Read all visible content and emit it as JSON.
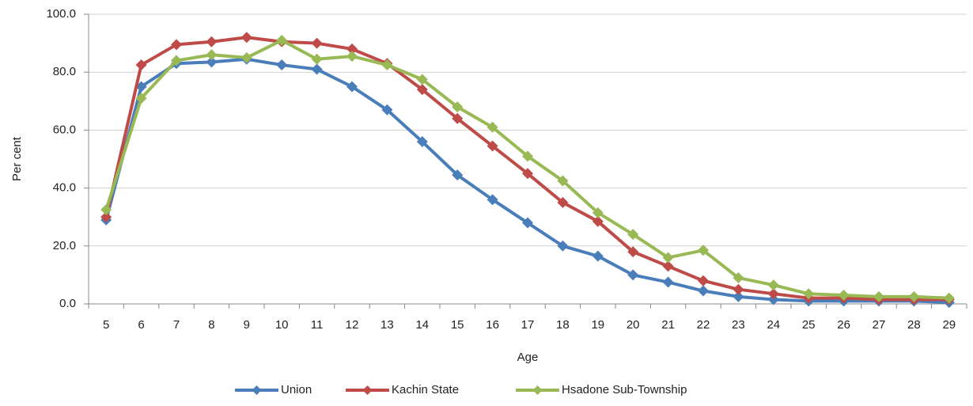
{
  "chart_data": {
    "type": "line",
    "x_label": "Age",
    "y_label": "Per cent",
    "categories": [
      "5",
      "6",
      "7",
      "8",
      "9",
      "10",
      "11",
      "12",
      "13",
      "14",
      "15",
      "16",
      "17",
      "18",
      "19",
      "20",
      "21",
      "22",
      "23",
      "24",
      "25",
      "26",
      "27",
      "28",
      "29"
    ],
    "series": [
      {
        "name": "Union",
        "color": "#4a7ebb",
        "values": [
          29,
          75,
          83,
          83.5,
          84.5,
          82.5,
          81,
          75,
          67,
          56,
          44.5,
          36,
          28,
          20,
          16.5,
          10,
          7.5,
          4.5,
          2.5,
          1.5,
          1,
          1,
          1,
          1,
          0.5
        ]
      },
      {
        "name": "Kachin State",
        "color": "#be4b48",
        "values": [
          30,
          82.5,
          89.5,
          90.5,
          92,
          90.5,
          90,
          88,
          83,
          74,
          64,
          54.5,
          45,
          35,
          28.5,
          18,
          13,
          8,
          5,
          3.5,
          2,
          2,
          1.5,
          1.5,
          1.5
        ]
      },
      {
        "name": "Hsadone Sub-Township",
        "color": "#98b954",
        "values": [
          32.5,
          71,
          84,
          86,
          85,
          91,
          84.5,
          85.5,
          82.5,
          77.5,
          68,
          61,
          51,
          42.5,
          31.5,
          24,
          16,
          18.5,
          9,
          6.5,
          3.5,
          3,
          2.5,
          2.5,
          2
        ]
      }
    ],
    "ylim": [
      0,
      100
    ],
    "yticks": [
      {
        "value": 0,
        "label": "0.0"
      },
      {
        "value": 20,
        "label": "20.0"
      },
      {
        "value": 40,
        "label": "40.0"
      },
      {
        "value": 60,
        "label": "60.0"
      },
      {
        "value": 80,
        "label": "80.0"
      },
      {
        "value": 100,
        "label": "100.0"
      }
    ],
    "grid": true,
    "legend": "bottom"
  }
}
